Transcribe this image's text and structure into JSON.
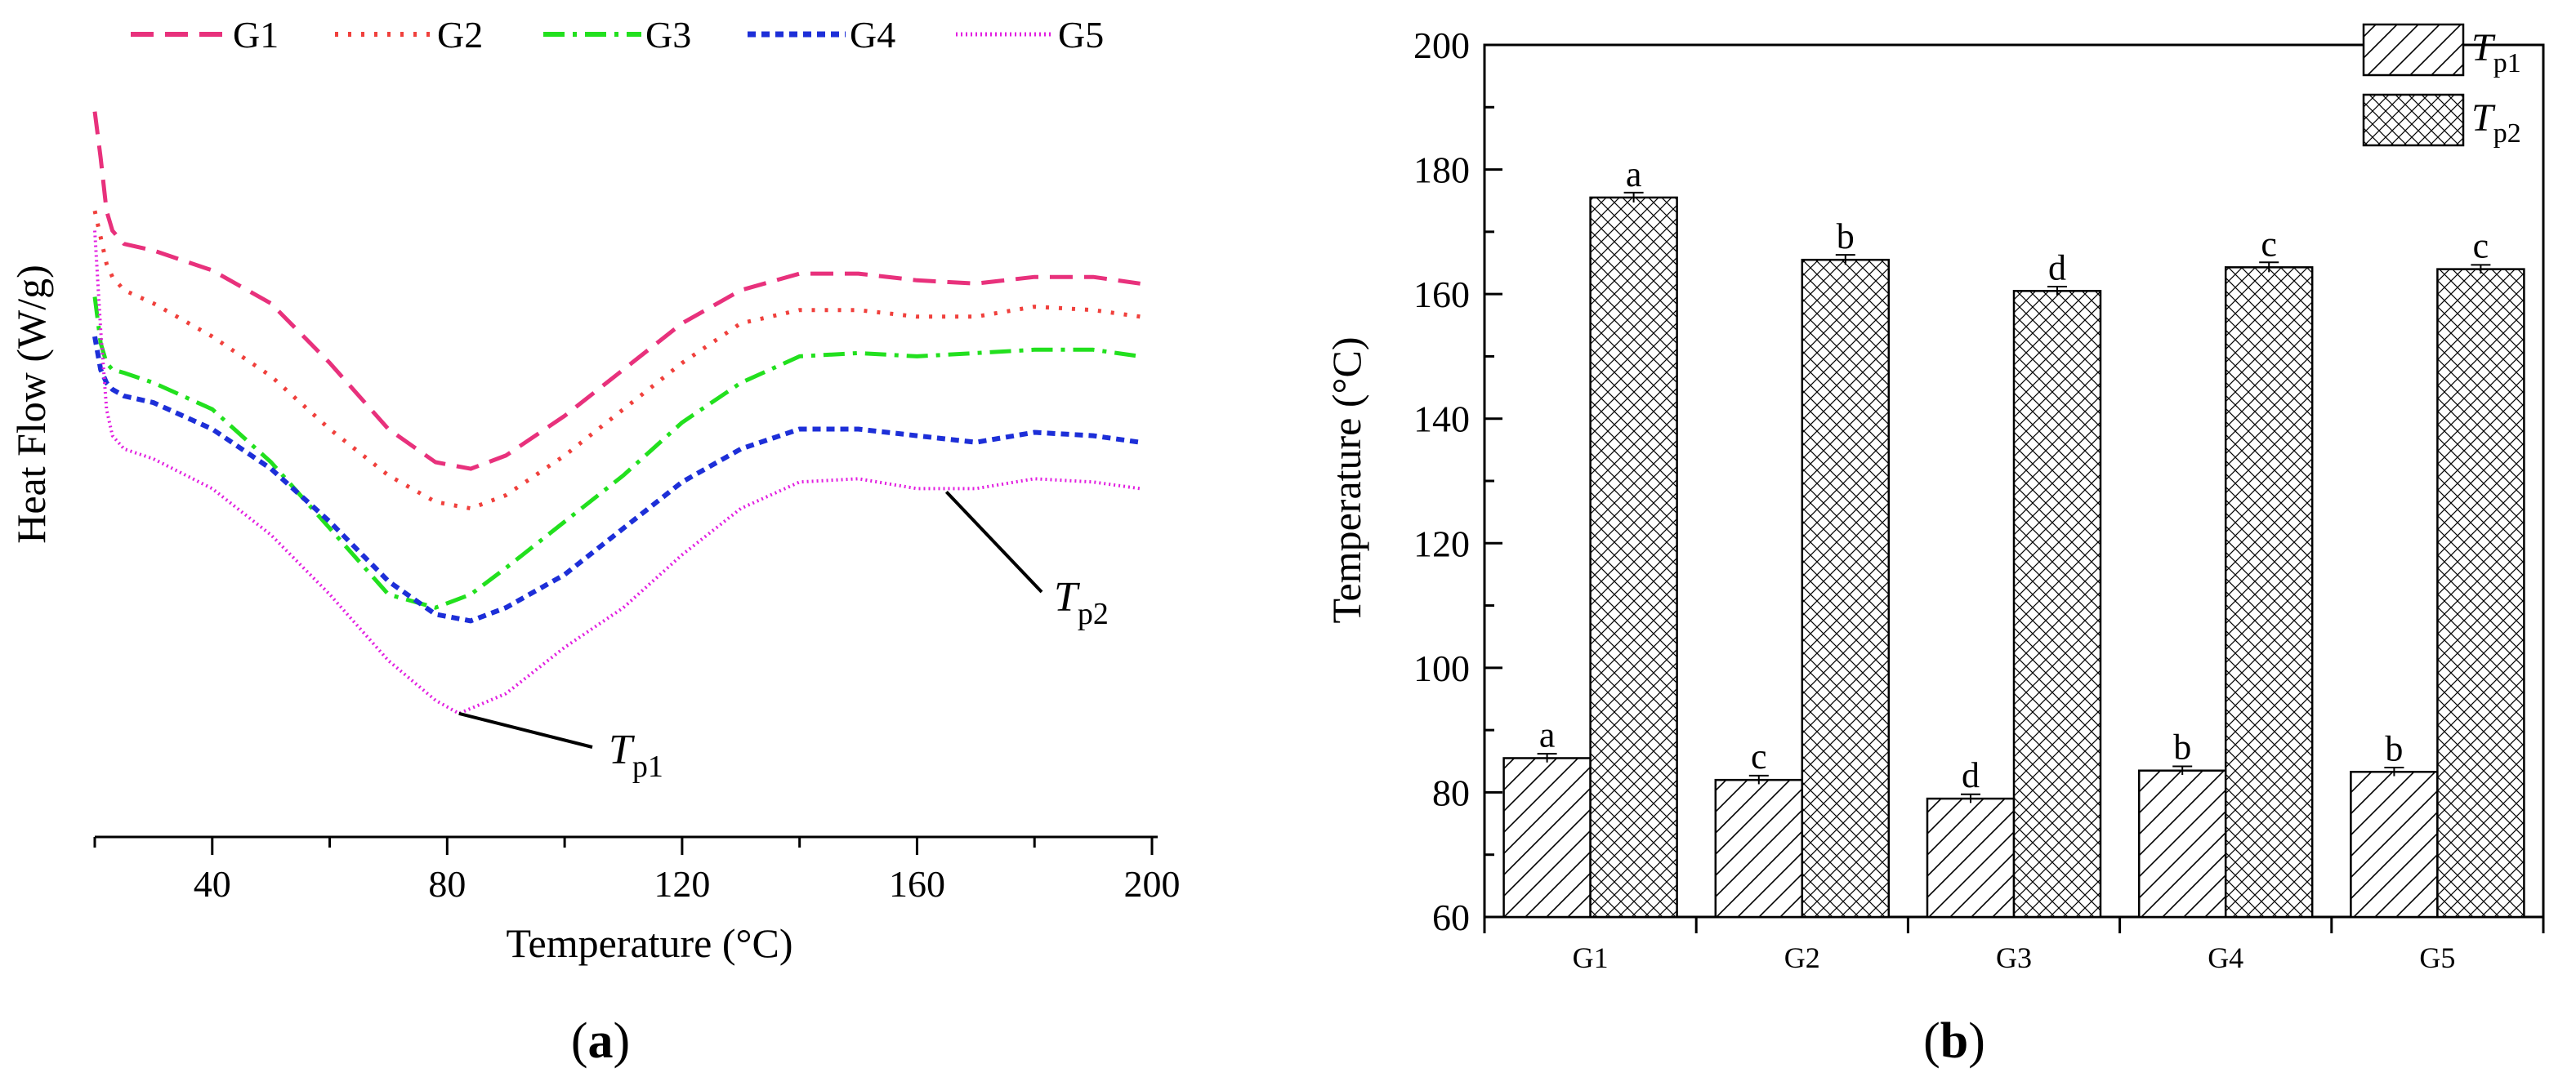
{
  "chart_data": [
    {
      "panel": "(a)",
      "panel_parts": {
        "open": "(",
        "letter": "a",
        "close": ")"
      },
      "type": "line",
      "xlabel": "Temperature (°C)",
      "ylabel": "Heat Flow (W/g)",
      "xlim": [
        20,
        200
      ],
      "xticks": [
        40,
        80,
        120,
        160,
        200
      ],
      "ylim": [
        0,
        100
      ],
      "y_units_note": "relative",
      "legend_position": "top",
      "series": [
        {
          "name": "G1",
          "color": "#e8317c",
          "style": "dash",
          "x": [
            20,
            21,
            22,
            23,
            25,
            30,
            40,
            50,
            60,
            70,
            78,
            84,
            90,
            100,
            110,
            120,
            130,
            140,
            150,
            160,
            170,
            180,
            190,
            198
          ],
          "y": [
            93,
            86,
            78,
            75,
            73,
            72,
            69,
            64,
            55,
            45,
            40,
            39,
            41,
            47,
            54,
            61,
            66,
            68.5,
            68.5,
            67.5,
            67,
            68,
            68,
            67
          ]
        },
        {
          "name": "G2",
          "color": "#f0403c",
          "style": "dot",
          "x": [
            20,
            21,
            22,
            23,
            25,
            30,
            40,
            50,
            60,
            70,
            78,
            84,
            90,
            100,
            110,
            120,
            130,
            140,
            150,
            160,
            170,
            180,
            190,
            198
          ],
          "y": [
            78,
            74,
            70,
            68,
            66,
            64,
            59,
            53,
            45,
            38,
            34,
            33,
            35,
            41,
            48,
            55,
            61,
            63,
            63,
            62,
            62,
            63.5,
            63,
            62
          ]
        },
        {
          "name": "G3",
          "color": "#22e01e",
          "style": "dashdot",
          "x": [
            20,
            21,
            22,
            23,
            25,
            30,
            40,
            50,
            60,
            70,
            78,
            84,
            90,
            100,
            110,
            120,
            130,
            140,
            150,
            160,
            170,
            180,
            190,
            198
          ],
          "y": [
            65,
            58,
            55,
            54,
            53.5,
            52,
            48,
            40,
            30,
            20,
            18,
            20,
            24,
            31,
            38,
            46,
            52,
            56,
            56.5,
            56,
            56.5,
            57,
            57,
            56
          ]
        },
        {
          "name": "G4",
          "color": "#1d2fd8",
          "style": "shortdash",
          "x": [
            20,
            21,
            22,
            23,
            25,
            30,
            40,
            50,
            60,
            70,
            78,
            84,
            90,
            100,
            110,
            120,
            130,
            140,
            150,
            160,
            170,
            180,
            190,
            198
          ],
          "y": [
            59,
            54,
            52,
            51,
            50,
            49,
            45,
            39,
            31,
            22,
            17,
            16,
            18,
            23,
            30,
            37,
            42,
            45,
            45,
            44,
            43,
            44.5,
            44,
            43
          ]
        },
        {
          "name": "G5",
          "color": "#e21ee0",
          "style": "finedot",
          "x": [
            20,
            21,
            22,
            23,
            25,
            30,
            40,
            50,
            60,
            70,
            78,
            82,
            90,
            100,
            110,
            120,
            130,
            140,
            150,
            160,
            170,
            180,
            190,
            198
          ],
          "y": [
            75,
            60,
            48,
            44,
            42,
            40.5,
            36,
            29,
            20,
            10,
            4,
            2,
            5,
            12,
            18,
            26,
            33,
            37,
            37.5,
            36,
            36,
            37.5,
            37,
            36
          ]
        }
      ],
      "annotations": [
        {
          "label_main": "T",
          "label_sub": "p1",
          "x": 82,
          "y": 2
        },
        {
          "label_main": "T",
          "label_sub": "p2",
          "x": 165,
          "y": 36
        }
      ]
    },
    {
      "panel": "(b)",
      "panel_parts": {
        "open": "(",
        "letter": "b",
        "close": ")"
      },
      "type": "bar",
      "ylabel": "Temperature (°C)",
      "ylim": [
        60,
        200
      ],
      "yticks": [
        60,
        80,
        100,
        120,
        140,
        160,
        180,
        200
      ],
      "categories": [
        "G1",
        "G2",
        "G3",
        "G4",
        "G5"
      ],
      "legend_position": "top-right",
      "series": [
        {
          "name": "T",
          "name_sub": "p1",
          "pattern": "diagonal-hatch",
          "values": [
            85.5,
            82.0,
            79.0,
            83.5,
            83.3
          ],
          "errors": [
            0.3,
            0.3,
            0.3,
            0.3,
            0.3
          ],
          "letters": [
            "a",
            "c",
            "d",
            "b",
            "b"
          ]
        },
        {
          "name": "T",
          "name_sub": "p2",
          "pattern": "crosshatch",
          "values": [
            175.5,
            165.5,
            160.5,
            164.3,
            164.0
          ],
          "errors": [
            0.4,
            0.4,
            0.3,
            0.4,
            0.3
          ],
          "letters": [
            "a",
            "b",
            "d",
            "c",
            "c"
          ]
        }
      ]
    }
  ]
}
